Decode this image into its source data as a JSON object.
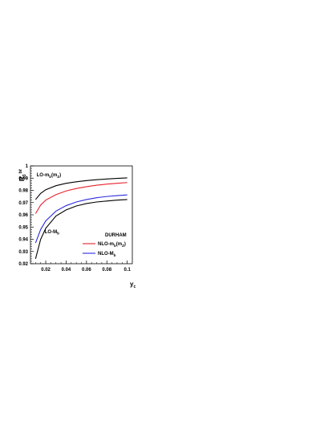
{
  "chart_data": {
    "type": "line",
    "ylabel": {
      "main": "R",
      "sub": "3",
      "sup": "bℓ"
    },
    "xlabel": {
      "main": "y",
      "sub": "c"
    },
    "xlim": [
      0.005,
      0.105
    ],
    "ylim": [
      0.92,
      1.0
    ],
    "xticks": [
      0.02,
      0.04,
      0.06,
      0.08,
      0.1
    ],
    "xtick_labels": [
      "0.02",
      "0.04",
      "0.06",
      "0.08",
      "0.1"
    ],
    "yticks": [
      0.92,
      0.93,
      0.94,
      0.95,
      0.96,
      0.97,
      0.98,
      0.99,
      1.0
    ],
    "ytick_labels": [
      "0.92",
      "0.93",
      "0.94",
      "0.95",
      "0.96",
      "0.97",
      "0.98",
      "0.99",
      "1"
    ],
    "grid": false,
    "series": [
      {
        "color": "#000000",
        "points": [
          [
            0.01,
            0.9725
          ],
          [
            0.015,
            0.9775
          ],
          [
            0.02,
            0.9805
          ],
          [
            0.03,
            0.9838
          ],
          [
            0.04,
            0.9858
          ],
          [
            0.05,
            0.987
          ],
          [
            0.06,
            0.988
          ],
          [
            0.07,
            0.9887
          ],
          [
            0.08,
            0.9893
          ],
          [
            0.09,
            0.9898
          ],
          [
            0.1,
            0.9902
          ]
        ]
      },
      {
        "name": "NLO-m_b(m_Z)",
        "color": "#e8202a",
        "points": [
          [
            0.01,
            0.961
          ],
          [
            0.015,
            0.968
          ],
          [
            0.02,
            0.972
          ],
          [
            0.03,
            0.9765
          ],
          [
            0.04,
            0.9795
          ],
          [
            0.05,
            0.9815
          ],
          [
            0.06,
            0.983
          ],
          [
            0.07,
            0.9842
          ],
          [
            0.08,
            0.9851
          ],
          [
            0.09,
            0.9858
          ],
          [
            0.1,
            0.9864
          ]
        ]
      },
      {
        "name": "NLO-M_b",
        "color": "#2a2ae0",
        "points": [
          [
            0.01,
            0.937
          ],
          [
            0.015,
            0.948
          ],
          [
            0.02,
            0.955
          ],
          [
            0.03,
            0.963
          ],
          [
            0.04,
            0.9675
          ],
          [
            0.05,
            0.9705
          ],
          [
            0.06,
            0.9725
          ],
          [
            0.07,
            0.974
          ],
          [
            0.08,
            0.975
          ],
          [
            0.09,
            0.9757
          ],
          [
            0.1,
            0.9763
          ]
        ]
      },
      {
        "color": "#000000",
        "points": [
          [
            0.01,
            0.924
          ],
          [
            0.015,
            0.94
          ],
          [
            0.02,
            0.949
          ],
          [
            0.03,
            0.959
          ],
          [
            0.04,
            0.964
          ],
          [
            0.05,
            0.9672
          ],
          [
            0.06,
            0.9692
          ],
          [
            0.07,
            0.9705
          ],
          [
            0.08,
            0.9713
          ],
          [
            0.09,
            0.972
          ],
          [
            0.1,
            0.9725
          ]
        ]
      }
    ],
    "annotations": [
      {
        "main": "LO-m",
        "sub": "b",
        "tail": "(m",
        "tail_sub": "Z",
        "tail_end": ")",
        "x": 0.011,
        "y": 0.9915
      },
      {
        "main": "LO-M",
        "sub": "b",
        "x": 0.019,
        "y": 0.945
      }
    ],
    "legend": {
      "title": "DURHAM",
      "placement": "lower-right",
      "entries": [
        {
          "main": "NLO-m",
          "sub": "b",
          "tail": "(m",
          "tail_sub": "Z",
          "tail_end": ")",
          "color": "#e8202a"
        },
        {
          "main": "NLO-M",
          "sub": "b",
          "tail": "",
          "tail_sub": "",
          "tail_end": "",
          "color": "#2a2ae0"
        }
      ]
    }
  }
}
